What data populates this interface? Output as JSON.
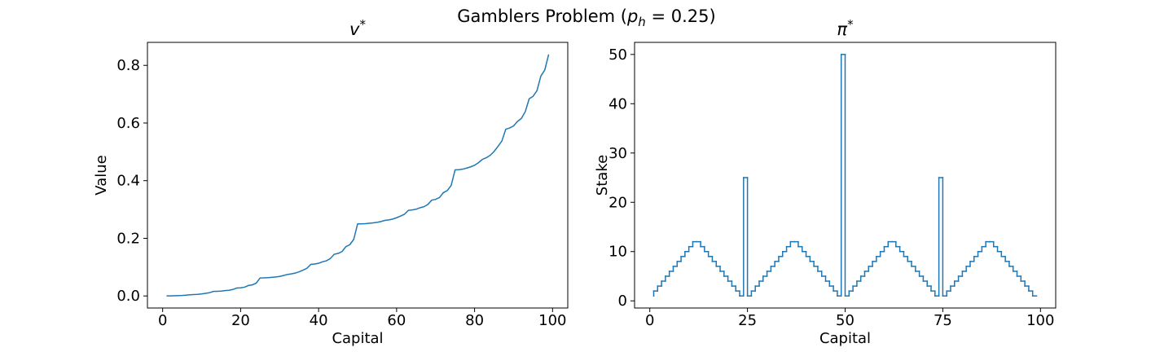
{
  "title": [
    "Gamblers Problem (",
    "p",
    "h",
    " = 0.25)"
  ],
  "chart_data": [
    {
      "type": "line",
      "title": [
        "v",
        "*"
      ],
      "x_label": "Capital",
      "y_label": "Value",
      "color": "#1f77b4",
      "x": [
        1,
        2,
        3,
        4,
        5,
        6,
        7,
        8,
        9,
        10,
        11,
        12,
        13,
        14,
        15,
        16,
        17,
        18,
        19,
        20,
        21,
        22,
        23,
        24,
        25,
        26,
        27,
        28,
        29,
        30,
        31,
        32,
        33,
        34,
        35,
        36,
        37,
        38,
        39,
        40,
        41,
        42,
        43,
        44,
        45,
        46,
        47,
        48,
        49,
        50,
        51,
        52,
        53,
        54,
        55,
        56,
        57,
        58,
        59,
        60,
        61,
        62,
        63,
        64,
        65,
        66,
        67,
        68,
        69,
        70,
        71,
        72,
        73,
        74,
        75,
        76,
        77,
        78,
        79,
        80,
        81,
        82,
        83,
        84,
        85,
        86,
        87,
        88,
        89,
        90,
        91,
        92,
        93,
        94,
        95,
        96,
        97,
        98,
        99
      ],
      "values": [
        0.0001,
        0.0003,
        0.0007,
        0.0012,
        0.0018,
        0.0028,
        0.004,
        0.0047,
        0.0056,
        0.0071,
        0.009,
        0.0111,
        0.0157,
        0.0162,
        0.017,
        0.0187,
        0.0198,
        0.0224,
        0.0274,
        0.0283,
        0.0305,
        0.0362,
        0.0385,
        0.0445,
        0.0625,
        0.0627,
        0.0634,
        0.0646,
        0.066,
        0.0678,
        0.0709,
        0.0746,
        0.0765,
        0.0793,
        0.0838,
        0.0896,
        0.0959,
        0.1095,
        0.1109,
        0.1134,
        0.1185,
        0.122,
        0.1297,
        0.1447,
        0.1475,
        0.154,
        0.171,
        0.178,
        0.196,
        0.25,
        0.2502,
        0.2509,
        0.2521,
        0.2535,
        0.2553,
        0.2583,
        0.2621,
        0.264,
        0.2668,
        0.2713,
        0.2771,
        0.2834,
        0.297,
        0.2984,
        0.3009,
        0.306,
        0.3095,
        0.3172,
        0.3322,
        0.335,
        0.3415,
        0.3585,
        0.3655,
        0.3835,
        0.4375,
        0.4382,
        0.4401,
        0.4438,
        0.448,
        0.4534,
        0.4625,
        0.4738,
        0.4795,
        0.4879,
        0.5013,
        0.5189,
        0.5376,
        0.5786,
        0.5828,
        0.5901,
        0.6054,
        0.6159,
        0.6392,
        0.684,
        0.6926,
        0.712,
        0.763,
        0.784,
        0.838
      ],
      "xlim": [
        -3.9,
        103.9
      ],
      "xticks": [
        0,
        20,
        40,
        60,
        80,
        100
      ],
      "ylim": [
        -0.0418,
        0.8798
      ],
      "yticks": [
        {
          "value": 0,
          "label": "0.0"
        },
        0.2,
        0.4,
        0.6,
        0.8
      ]
    },
    {
      "type": "step",
      "title": [
        "π",
        "*"
      ],
      "x_label": "Capital",
      "y_label": "Stake",
      "color": "#1f77b4",
      "x": [
        1,
        2,
        3,
        4,
        5,
        6,
        7,
        8,
        9,
        10,
        11,
        12,
        13,
        14,
        15,
        16,
        17,
        18,
        19,
        20,
        21,
        22,
        23,
        24,
        25,
        26,
        27,
        28,
        29,
        30,
        31,
        32,
        33,
        34,
        35,
        36,
        37,
        38,
        39,
        40,
        41,
        42,
        43,
        44,
        45,
        46,
        47,
        48,
        49,
        50,
        51,
        52,
        53,
        54,
        55,
        56,
        57,
        58,
        59,
        60,
        61,
        62,
        63,
        64,
        65,
        66,
        67,
        68,
        69,
        70,
        71,
        72,
        73,
        74,
        75,
        76,
        77,
        78,
        79,
        80,
        81,
        82,
        83,
        84,
        85,
        86,
        87,
        88,
        89,
        90,
        91,
        92,
        93,
        94,
        95,
        96,
        97,
        98,
        99
      ],
      "values": [
        1,
        2,
        3,
        4,
        5,
        6,
        7,
        8,
        9,
        10,
        11,
        12,
        12,
        11,
        10,
        9,
        8,
        7,
        6,
        5,
        4,
        3,
        2,
        1,
        25,
        1,
        2,
        3,
        4,
        5,
        6,
        7,
        8,
        9,
        10,
        11,
        12,
        12,
        11,
        10,
        9,
        8,
        7,
        6,
        5,
        4,
        3,
        2,
        1,
        50,
        1,
        2,
        3,
        4,
        5,
        6,
        7,
        8,
        9,
        10,
        11,
        12,
        12,
        11,
        10,
        9,
        8,
        7,
        6,
        5,
        4,
        3,
        2,
        1,
        25,
        1,
        2,
        3,
        4,
        5,
        6,
        7,
        8,
        9,
        10,
        11,
        12,
        12,
        11,
        10,
        9,
        8,
        7,
        6,
        5,
        4,
        3,
        2,
        1
      ],
      "xlim": [
        -3.9,
        103.9
      ],
      "xticks": [
        0,
        25,
        50,
        75,
        100
      ],
      "ylim": [
        -1.45,
        52.45
      ],
      "yticks": [
        0,
        10,
        20,
        30,
        40,
        50
      ]
    }
  ]
}
